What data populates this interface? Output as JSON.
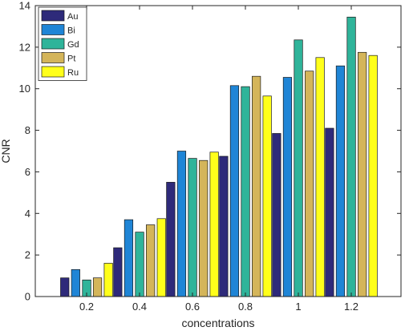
{
  "chart_data": {
    "type": "bar",
    "title": "",
    "xlabel": "concentrations",
    "ylabel": "CNR",
    "ylim": [
      0,
      14
    ],
    "yticks": [
      0,
      2,
      4,
      6,
      8,
      10,
      12,
      14
    ],
    "categories": [
      "0.2",
      "0.4",
      "0.6",
      "0.8",
      "1",
      "1.2"
    ],
    "grid": false,
    "legend_position": "top-left",
    "series": [
      {
        "name": "Au",
        "color": "#2e2a7a",
        "values": [
          0.9,
          2.35,
          5.5,
          6.75,
          7.85,
          8.1
        ]
      },
      {
        "name": "Bi",
        "color": "#1f85d6",
        "values": [
          1.3,
          3.7,
          7.0,
          10.15,
          10.55,
          11.1
        ]
      },
      {
        "name": "Gd",
        "color": "#2fb49a",
        "values": [
          0.8,
          3.1,
          6.65,
          10.1,
          12.35,
          13.45
        ]
      },
      {
        "name": "Pt",
        "color": "#d4b55a",
        "values": [
          0.9,
          3.45,
          6.55,
          10.6,
          10.85,
          11.75
        ]
      },
      {
        "name": "Ru",
        "color": "#ffff1a",
        "values": [
          1.6,
          3.75,
          6.95,
          9.65,
          11.5,
          11.6
        ]
      }
    ]
  }
}
